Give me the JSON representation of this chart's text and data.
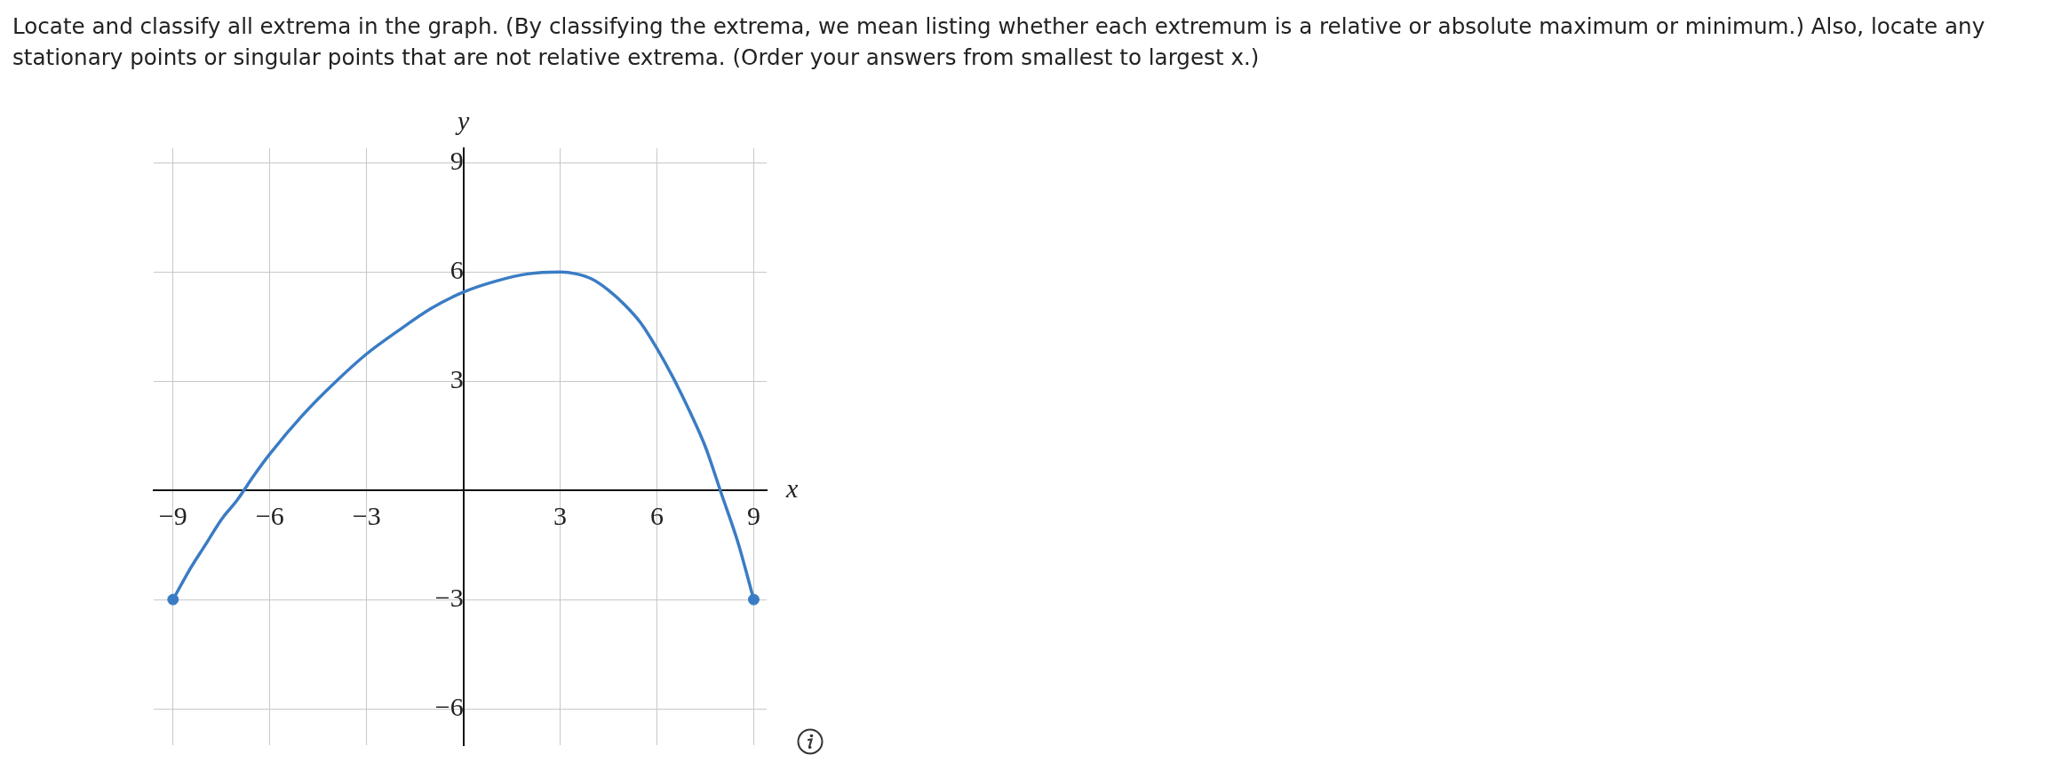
{
  "chart_data": {
    "type": "line",
    "title": "Locate and classify all extrema in the graph. (By classifying the extrema, we mean listing whether each extremum is a relative or absolute maximum or minimum.) Also, locate any stationary points or singular points that are not relative extrema. (Order your answers from smallest to largest x.)",
    "xlabel": "x",
    "ylabel": "y",
    "xlim": [
      -9.6,
      9.4
    ],
    "ylim": [
      -7,
      9.4
    ],
    "xticks": [
      {
        "value": -9,
        "label": "−9"
      },
      {
        "value": -6,
        "label": "−6"
      },
      {
        "value": -3,
        "label": "−3"
      },
      3,
      6,
      9
    ],
    "yticks": [
      {
        "value": -6,
        "label": "−6"
      },
      {
        "value": -3,
        "label": "−3"
      },
      3,
      6,
      9
    ],
    "grid": true,
    "legend": false,
    "series": [
      {
        "color": "#3a7cc4",
        "marker": "none",
        "x": [
          -9,
          -8.5,
          -8,
          -7.5,
          -7,
          -6.5,
          -6,
          -5,
          -4,
          -3,
          -2,
          -1,
          0,
          1,
          2,
          3,
          3.5,
          4,
          4.5,
          5,
          5.5,
          6,
          6.5,
          7,
          7.5,
          8,
          8.5,
          9
        ],
        "values": [
          -3,
          -2.2,
          -1.5,
          -0.8,
          -0.25,
          0.4,
          1,
          2.05,
          2.95,
          3.75,
          4.4,
          5,
          5.45,
          5.75,
          5.95,
          6,
          5.95,
          5.8,
          5.5,
          5.1,
          4.6,
          3.9,
          3.1,
          2.2,
          1.2,
          -0.1,
          -1.4,
          -3
        ]
      },
      {
        "type": "scatter",
        "color": "#3a7cc4",
        "marker": "circle",
        "x": [
          -9,
          9
        ],
        "values": [
          -3,
          -3
        ]
      }
    ]
  }
}
